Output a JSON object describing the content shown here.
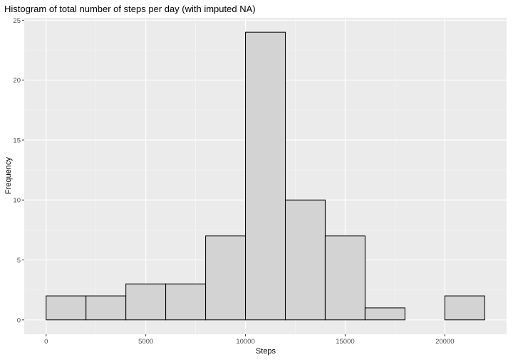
{
  "chart_data": {
    "type": "bar",
    "subtype": "histogram",
    "title": "Histogram of total number of steps per day (with imputed NA)",
    "xlabel": "Steps",
    "ylabel": "Frequency",
    "bins": [
      {
        "start": 0,
        "end": 2000,
        "count": 2
      },
      {
        "start": 2000,
        "end": 4000,
        "count": 2
      },
      {
        "start": 4000,
        "end": 6000,
        "count": 3
      },
      {
        "start": 6000,
        "end": 8000,
        "count": 3
      },
      {
        "start": 8000,
        "end": 10000,
        "count": 7
      },
      {
        "start": 10000,
        "end": 12000,
        "count": 24
      },
      {
        "start": 12000,
        "end": 14000,
        "count": 10
      },
      {
        "start": 14000,
        "end": 16000,
        "count": 7
      },
      {
        "start": 16000,
        "end": 18000,
        "count": 1
      },
      {
        "start": 18000,
        "end": 20000,
        "count": 0
      },
      {
        "start": 20000,
        "end": 22000,
        "count": 2
      }
    ],
    "xlim": [
      -1100,
      23100
    ],
    "ylim": [
      -1.2,
      25.2
    ],
    "x_ticks": [
      0,
      5000,
      10000,
      15000,
      20000
    ],
    "x_tick_labels": [
      "0",
      "5000",
      "10000",
      "15000",
      "20000"
    ],
    "y_ticks": [
      0,
      5,
      10,
      15,
      20,
      25
    ],
    "y_tick_labels": [
      "0",
      "5",
      "10",
      "15",
      "20",
      "25"
    ],
    "grid": true,
    "colors": {
      "panel_background": "#ebebeb",
      "grid_major": "#ffffff",
      "grid_minor": "#f5f5f5",
      "bar_fill": "#d3d3d3",
      "bar_outline": "#000000"
    }
  }
}
